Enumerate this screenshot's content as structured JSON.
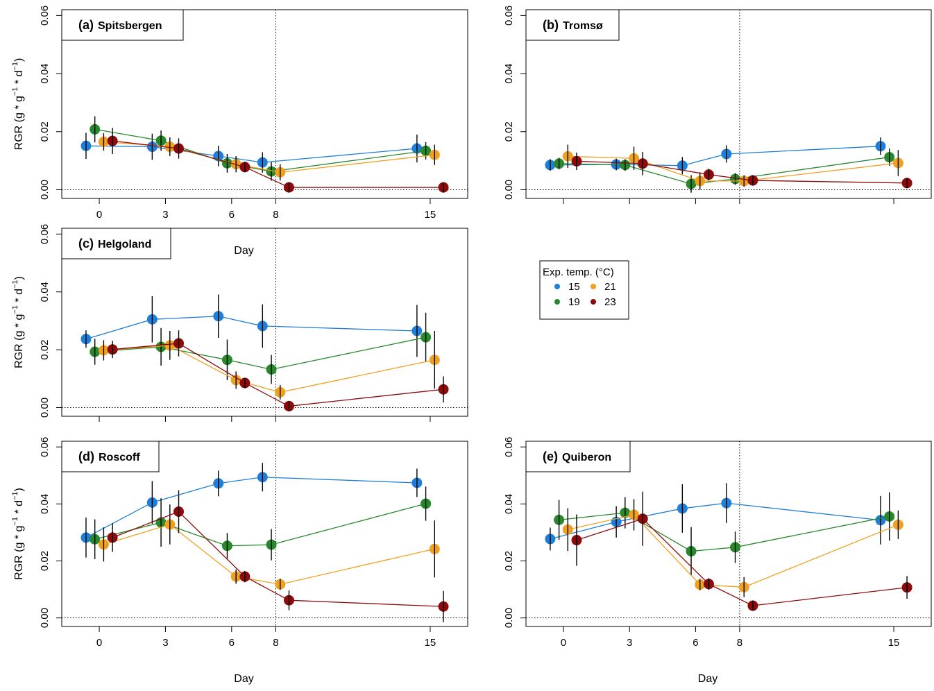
{
  "figure": {
    "xlabel": "Day",
    "ylabel_base": "RGR (g * g",
    "ylabel_mid": " * d",
    "ylabel_exp": "−1",
    "ylabel_end": ")"
  },
  "legend": {
    "title": "Exp. temp. (°C)",
    "entries": [
      {
        "label": "15",
        "color": "#1f7fd8"
      },
      {
        "label": "21",
        "color": "#f0a020"
      },
      {
        "label": "19",
        "color": "#27882c"
      },
      {
        "label": "23",
        "color": "#8b0a0a"
      }
    ]
  },
  "chart_data": [
    {
      "type": "scatter",
      "panel": "a",
      "tag": "(a)",
      "title": "Spitsbergen",
      "xlabel": "Day",
      "ylabel": "RGR (g * g−1 * d−1)",
      "x_ticks": [
        0,
        3,
        6,
        8,
        15
      ],
      "y_ticks": [
        "0.00",
        "0.02",
        "0.04",
        "0.06"
      ],
      "xlim": [
        -1.7,
        16.7
      ],
      "ylim": [
        -0.003,
        0.062
      ],
      "grid": false,
      "reference_lines": {
        "vertical_x": 8,
        "horizontal_y": 0
      },
      "series": [
        {
          "name": "15",
          "color": "#1f7fd8",
          "x": [
            -0.6,
            2.4,
            5.4,
            7.4,
            14.4
          ],
          "y": [
            0.0151,
            0.0148,
            0.0116,
            0.0094,
            0.0142
          ],
          "err": [
            0.0045,
            0.0045,
            0.0035,
            0.0035,
            0.0048
          ]
        },
        {
          "name": "19",
          "color": "#27882c",
          "x": [
            -0.2,
            2.8,
            5.8,
            7.8,
            14.8
          ],
          "y": [
            0.0208,
            0.0169,
            0.0091,
            0.0063,
            0.0134
          ],
          "err": [
            0.0045,
            0.0035,
            0.0032,
            0.0032,
            0.003
          ]
        },
        {
          "name": "21",
          "color": "#f0a020",
          "x": [
            0.2,
            3.2,
            6.2,
            8.2,
            15.2
          ],
          "y": [
            0.0165,
            0.0148,
            0.0088,
            0.006,
            0.012
          ],
          "err": [
            0.003,
            0.0032,
            0.0028,
            0.0028,
            0.0035
          ]
        },
        {
          "name": "23",
          "color": "#8b0a0a",
          "x": [
            0.6,
            3.6,
            6.6,
            8.6,
            15.6
          ],
          "y": [
            0.0168,
            0.0142,
            0.0078,
            0.0008,
            0.0008
          ],
          "err": [
            0.0045,
            0.0035,
            0.0015,
            0.001,
            0.0008
          ]
        }
      ]
    },
    {
      "type": "scatter",
      "panel": "b",
      "tag": "(b)",
      "title": "Tromsø",
      "xlabel": "",
      "ylabel": "",
      "x_ticks": [],
      "y_ticks": [
        "0.00",
        "0.02",
        "0.04",
        "0.06"
      ],
      "xlim": [
        -1.7,
        16.7
      ],
      "ylim": [
        -0.003,
        0.062
      ],
      "grid": false,
      "reference_lines": {
        "vertical_x": 8,
        "horizontal_y": 0
      },
      "series": [
        {
          "name": "15",
          "color": "#1f7fd8",
          "x": [
            -0.6,
            2.4,
            5.4,
            7.4,
            14.4
          ],
          "y": [
            0.0085,
            0.0087,
            0.0083,
            0.0123,
            0.015
          ],
          "err": [
            0.002,
            0.002,
            0.003,
            0.003,
            0.003
          ]
        },
        {
          "name": "19",
          "color": "#27882c",
          "x": [
            -0.2,
            2.8,
            5.8,
            7.8,
            14.8
          ],
          "y": [
            0.009,
            0.0085,
            0.002,
            0.0037,
            0.0112
          ],
          "err": [
            0.002,
            0.002,
            0.003,
            0.002,
            0.003
          ]
        },
        {
          "name": "21",
          "color": "#f0a020",
          "x": [
            0.2,
            3.2,
            6.2,
            8.2,
            15.2
          ],
          "y": [
            0.0115,
            0.0108,
            0.003,
            0.003,
            0.0092
          ],
          "err": [
            0.004,
            0.004,
            0.003,
            0.002,
            0.0045
          ]
        },
        {
          "name": "23",
          "color": "#8b0a0a",
          "x": [
            0.6,
            3.6,
            6.6,
            8.6,
            15.6
          ],
          "y": [
            0.0098,
            0.009,
            0.0052,
            0.0032,
            0.0023
          ],
          "err": [
            0.003,
            0.004,
            0.002,
            0.0015,
            0.0015
          ]
        }
      ]
    },
    {
      "type": "scatter",
      "panel": "c",
      "tag": "(c)",
      "title": "Helgoland",
      "xlabel": "",
      "ylabel": "RGR (g * g−1 * d−1)",
      "x_ticks": [],
      "y_ticks": [
        "0.00",
        "0.02",
        "0.04",
        "0.06"
      ],
      "xlim": [
        -1.7,
        16.7
      ],
      "ylim": [
        -0.003,
        0.062
      ],
      "grid": false,
      "reference_lines": {
        "vertical_x": 8,
        "horizontal_y": 0
      },
      "series": [
        {
          "name": "15",
          "color": "#1f7fd8",
          "x": [
            -0.6,
            2.4,
            5.4,
            7.4,
            14.4
          ],
          "y": [
            0.0237,
            0.0305,
            0.0316,
            0.0282,
            0.0265
          ],
          "err": [
            0.003,
            0.008,
            0.0075,
            0.0075,
            0.009
          ]
        },
        {
          "name": "19",
          "color": "#27882c",
          "x": [
            -0.2,
            2.8,
            5.8,
            7.8,
            14.8
          ],
          "y": [
            0.0193,
            0.021,
            0.0165,
            0.0132,
            0.0243
          ],
          "err": [
            0.0045,
            0.0065,
            0.007,
            0.005,
            0.0085
          ]
        },
        {
          "name": "21",
          "color": "#f0a020",
          "x": [
            0.2,
            3.2,
            6.2,
            8.2,
            15.2
          ],
          "y": [
            0.0198,
            0.0215,
            0.0095,
            0.0053,
            0.0165
          ],
          "err": [
            0.0035,
            0.005,
            0.003,
            0.0025,
            0.01
          ]
        },
        {
          "name": "23",
          "color": "#8b0a0a",
          "x": [
            0.6,
            3.6,
            6.6,
            8.6,
            15.6
          ],
          "y": [
            0.0201,
            0.0222,
            0.0085,
            0.0005,
            0.0063
          ],
          "err": [
            0.003,
            0.0045,
            0.0015,
            0.0008,
            0.0045
          ]
        }
      ]
    },
    {
      "type": "scatter",
      "panel": "d",
      "tag": "(d)",
      "title": "Roscoff",
      "xlabel": "Day",
      "ylabel": "RGR (g * g−1 * d−1)",
      "x_ticks": [
        0,
        3,
        6,
        8,
        15
      ],
      "y_ticks": [
        "0.00",
        "0.02",
        "0.04",
        "0.06"
      ],
      "xlim": [
        -1.7,
        16.7
      ],
      "ylim": [
        -0.003,
        0.062
      ],
      "grid": false,
      "reference_lines": {
        "vertical_x": 8,
        "horizontal_y": 0
      },
      "series": [
        {
          "name": "15",
          "color": "#1f7fd8",
          "x": [
            -0.6,
            2.4,
            5.4,
            7.4,
            14.4
          ],
          "y": [
            0.0282,
            0.0405,
            0.0472,
            0.0494,
            0.0474
          ],
          "err": [
            0.007,
            0.0075,
            0.0045,
            0.005,
            0.005
          ]
        },
        {
          "name": "19",
          "color": "#27882c",
          "x": [
            -0.2,
            2.8,
            5.8,
            7.8,
            14.8
          ],
          "y": [
            0.0276,
            0.0335,
            0.0253,
            0.0257,
            0.0401
          ],
          "err": [
            0.007,
            0.0085,
            0.0045,
            0.0055,
            0.006
          ]
        },
        {
          "name": "21",
          "color": "#f0a020",
          "x": [
            0.2,
            3.2,
            6.2,
            8.2,
            15.2
          ],
          "y": [
            0.0258,
            0.0328,
            0.0145,
            0.0118,
            0.0242
          ],
          "err": [
            0.006,
            0.007,
            0.0025,
            0.002,
            0.01
          ]
        },
        {
          "name": "23",
          "color": "#8b0a0a",
          "x": [
            0.6,
            3.6,
            6.6,
            8.6,
            15.6
          ],
          "y": [
            0.0282,
            0.0373,
            0.0145,
            0.0062,
            0.004
          ],
          "err": [
            0.005,
            0.0075,
            0.002,
            0.0035,
            0.0055
          ]
        }
      ]
    },
    {
      "type": "scatter",
      "panel": "e",
      "tag": "(e)",
      "title": "Quiberon",
      "xlabel": "Day",
      "ylabel": "",
      "x_ticks": [
        0,
        3,
        6,
        8,
        15
      ],
      "y_ticks": [
        "0.00",
        "0.02",
        "0.04",
        "0.06"
      ],
      "xlim": [
        -1.7,
        16.7
      ],
      "ylim": [
        -0.003,
        0.062
      ],
      "grid": false,
      "reference_lines": {
        "vertical_x": 8,
        "horizontal_y": 0
      },
      "series": [
        {
          "name": "15",
          "color": "#1f7fd8",
          "x": [
            -0.6,
            2.4,
            5.4,
            7.4,
            14.4
          ],
          "y": [
            0.0277,
            0.0337,
            0.0384,
            0.0403,
            0.0343
          ],
          "err": [
            0.004,
            0.0055,
            0.0085,
            0.007,
            0.0085
          ]
        },
        {
          "name": "19",
          "color": "#27882c",
          "x": [
            -0.2,
            2.8,
            5.8,
            7.8,
            14.8
          ],
          "y": [
            0.0344,
            0.0369,
            0.0234,
            0.0248,
            0.0356
          ],
          "err": [
            0.007,
            0.0055,
            0.0085,
            0.0055,
            0.0085
          ]
        },
        {
          "name": "21",
          "color": "#f0a020",
          "x": [
            0.2,
            3.2,
            6.2,
            8.2,
            15.2
          ],
          "y": [
            0.031,
            0.0362,
            0.0117,
            0.0108,
            0.0327
          ],
          "err": [
            0.0075,
            0.0055,
            0.002,
            0.0035,
            0.005
          ]
        },
        {
          "name": "23",
          "color": "#8b0a0a",
          "x": [
            0.6,
            3.6,
            6.6,
            8.6,
            15.6
          ],
          "y": [
            0.0273,
            0.0348,
            0.0119,
            0.0043,
            0.0107
          ],
          "err": [
            0.009,
            0.0095,
            0.002,
            0.0015,
            0.004
          ]
        }
      ]
    }
  ]
}
